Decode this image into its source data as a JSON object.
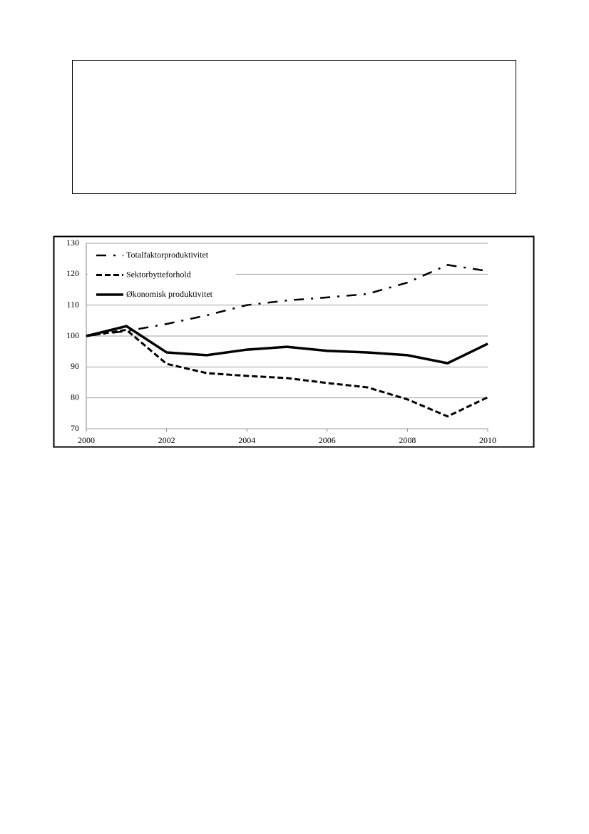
{
  "chart_data": {
    "type": "line",
    "x": [
      2000,
      2001,
      2002,
      2003,
      2004,
      2005,
      2006,
      2007,
      2008,
      2009,
      2010
    ],
    "xlim": [
      2000,
      2010
    ],
    "xticks": [
      2000,
      2002,
      2004,
      2006,
      2008,
      2010
    ],
    "ylim": [
      70,
      130
    ],
    "yticks": [
      70,
      80,
      90,
      100,
      110,
      120,
      130
    ],
    "grid": true,
    "legend": "top-left",
    "series": [
      {
        "name": "Totalfaktorproduktivitet",
        "color": "#000000",
        "dash": "dash-dot",
        "values": [
          100,
          101.6,
          103.9,
          106.7,
          110,
          111.5,
          112.5,
          113.6,
          117.3,
          123,
          121
        ]
      },
      {
        "name": "Sektorbytteforhold",
        "color": "#000000",
        "dash": "dashed",
        "values": [
          100,
          102,
          91,
          88,
          87.1,
          86.4,
          84.8,
          83.4,
          79.5,
          74,
          80.2
        ]
      },
      {
        "name": "Økonomisk produktivitet",
        "color": "#000000",
        "dash": "solid",
        "values": [
          100,
          103.2,
          94.7,
          93.8,
          95.6,
          96.5,
          95.2,
          94.7,
          93.8,
          91.2,
          97.5
        ]
      }
    ]
  }
}
